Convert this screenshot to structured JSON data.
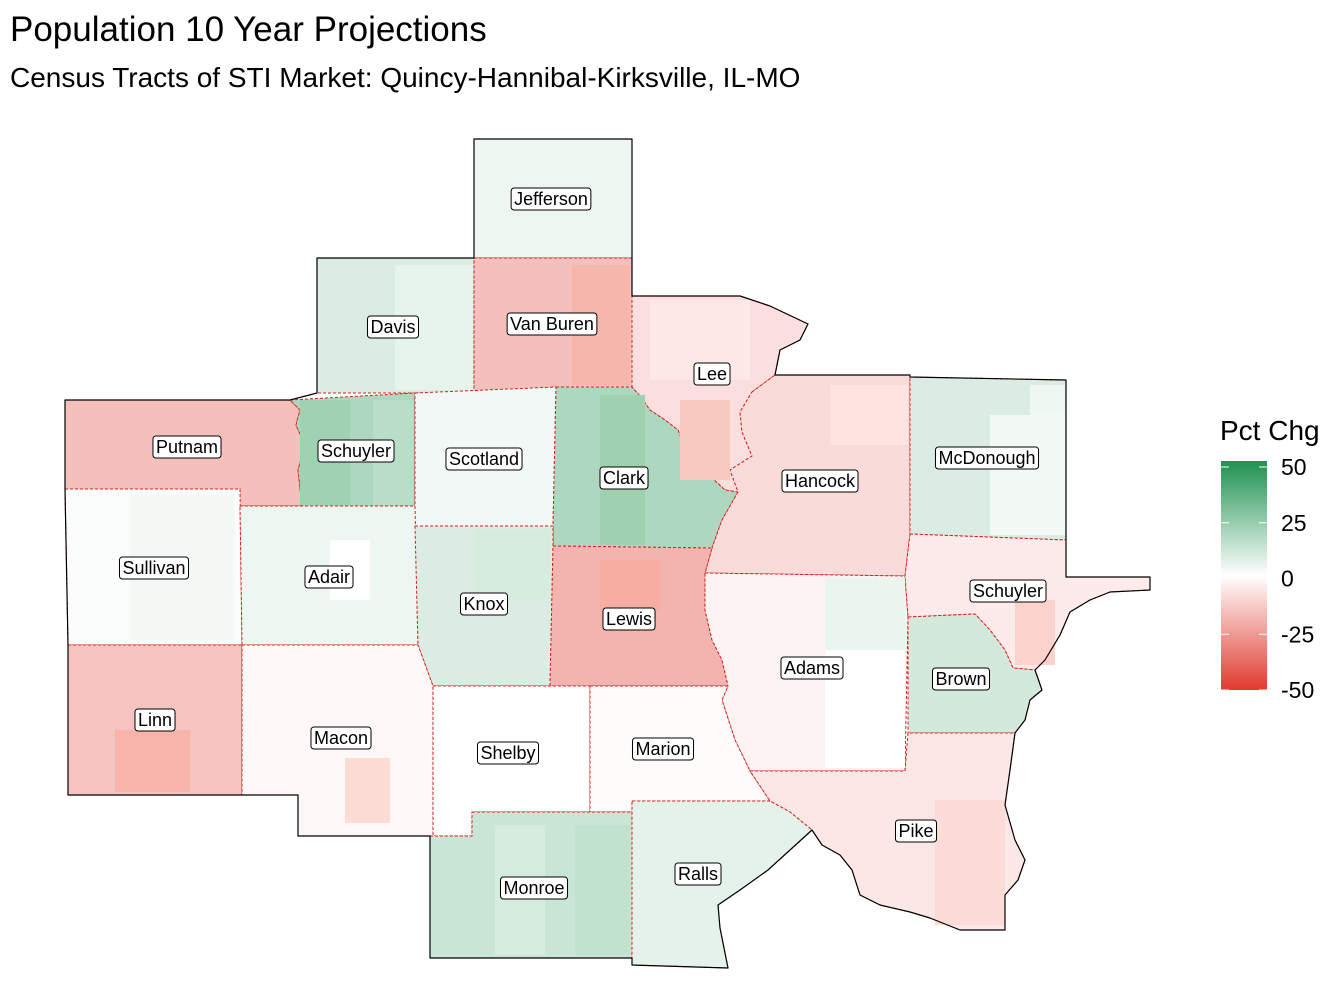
{
  "title": "Population 10 Year Projections",
  "subtitle": "Census Tracts of STI Market: Quincy-Hannibal-Kirksville, IL-MO",
  "legend": {
    "title": "Pct Chg",
    "ticks": [
      "50",
      "25",
      "0",
      "-25",
      "-50"
    ],
    "tick_values": [
      50,
      25,
      0,
      -25,
      -50
    ],
    "range": [
      -50,
      50
    ],
    "colors": {
      "low": "#e03a2e",
      "mid": "#ffffff",
      "high": "#1f9150"
    },
    "position": "right"
  },
  "map": {
    "boundary_color": "#d42020",
    "outline_color": "#000000",
    "counties": [
      {
        "name": "Jefferson",
        "pct_chg": 4
      },
      {
        "name": "Davis",
        "pct_chg": 8
      },
      {
        "name": "Van Buren",
        "pct_chg": -16
      },
      {
        "name": "Lee",
        "pct_chg": -8
      },
      {
        "name": "Putnam",
        "pct_chg": -16
      },
      {
        "name": "Schuyler",
        "pct_chg": 18
      },
      {
        "name": "Scotland",
        "pct_chg": 3
      },
      {
        "name": "Clark",
        "pct_chg": 18
      },
      {
        "name": "Hancock",
        "pct_chg": -9
      },
      {
        "name": "McDonough",
        "pct_chg": 8
      },
      {
        "name": "Sullivan",
        "pct_chg": 1
      },
      {
        "name": "Adair",
        "pct_chg": 4
      },
      {
        "name": "Knox",
        "pct_chg": 8
      },
      {
        "name": "Lewis",
        "pct_chg": -19
      },
      {
        "name": "Adams",
        "pct_chg": -3
      },
      {
        "name": "Schuyler",
        "pct_chg": -5
      },
      {
        "name": "Brown",
        "pct_chg": 10
      },
      {
        "name": "Linn",
        "pct_chg": -15
      },
      {
        "name": "Macon",
        "pct_chg": -2
      },
      {
        "name": "Shelby",
        "pct_chg": 0
      },
      {
        "name": "Marion",
        "pct_chg": -1
      },
      {
        "name": "Pike",
        "pct_chg": -6
      },
      {
        "name": "Monroe",
        "pct_chg": 12
      },
      {
        "name": "Ralls",
        "pct_chg": 6
      }
    ]
  }
}
